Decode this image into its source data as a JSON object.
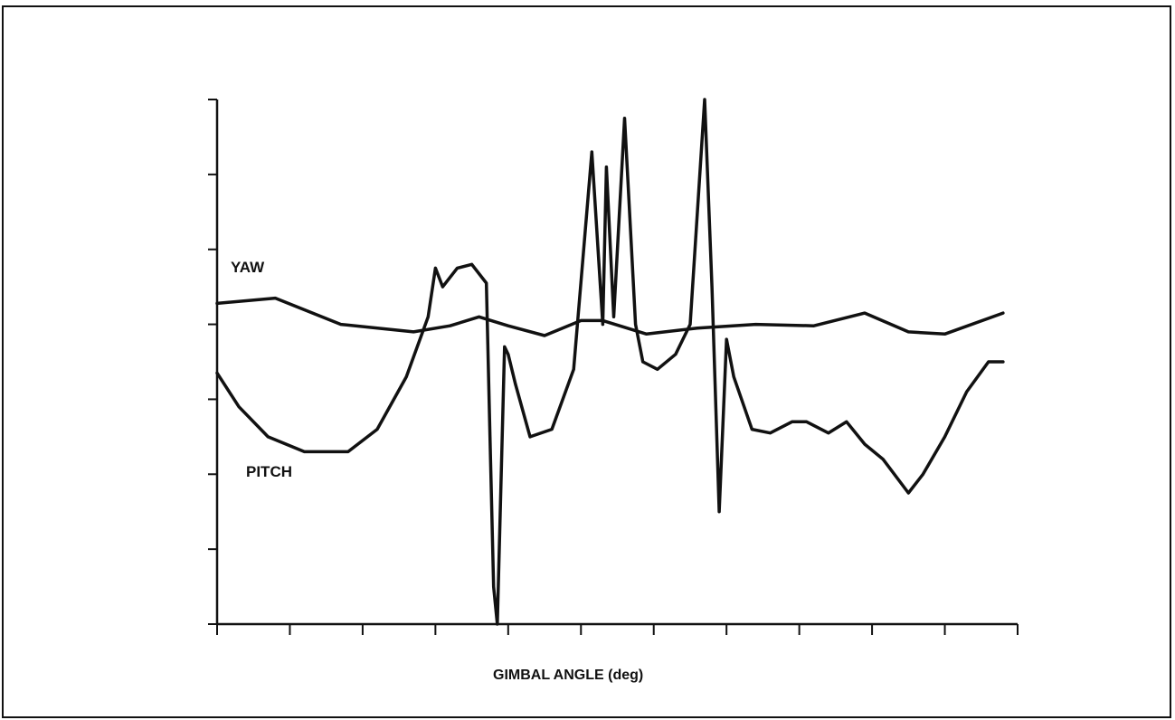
{
  "chart_data": {
    "type": "line",
    "xlabel": "GIMBAL ANGLE (deg)",
    "ylabel": "",
    "xlim": [
      0,
      11
    ],
    "ylim": [
      0,
      7
    ],
    "x_ticks": [
      0,
      1,
      2,
      3,
      4,
      5,
      6,
      7,
      8,
      9,
      10,
      11
    ],
    "y_ticks": [
      0,
      1,
      2,
      3,
      4,
      5,
      6,
      7
    ],
    "grid": false,
    "series": [
      {
        "name": "YAW",
        "x": [
          0,
          0.8,
          1.7,
          2.7,
          3.2,
          3.6,
          4.0,
          4.5,
          5.0,
          5.3,
          5.9,
          6.6,
          7.4,
          8.2,
          8.9,
          9.5,
          10.0,
          10.8
        ],
        "y": [
          4.28,
          4.35,
          4.0,
          3.9,
          3.98,
          4.1,
          3.98,
          3.85,
          4.05,
          4.05,
          3.87,
          3.95,
          4.0,
          3.98,
          4.15,
          3.9,
          3.87,
          4.15
        ]
      },
      {
        "name": "PITCH",
        "x": [
          0,
          0.3,
          0.7,
          1.2,
          1.8,
          2.2,
          2.6,
          2.9,
          3.0,
          3.1,
          3.3,
          3.5,
          3.7,
          3.75,
          3.8,
          3.85,
          3.95,
          4.0,
          4.1,
          4.3,
          4.6,
          4.9,
          5.15,
          5.3,
          5.35,
          5.45,
          5.6,
          5.75,
          5.85,
          6.05,
          6.3,
          6.5,
          6.7,
          6.8,
          6.9,
          7.0,
          7.1,
          7.35,
          7.6,
          7.9,
          8.1,
          8.4,
          8.65,
          8.9,
          9.15,
          9.5,
          9.7,
          10.0,
          10.3,
          10.6,
          10.8
        ],
        "y": [
          3.35,
          2.9,
          2.5,
          2.3,
          2.3,
          2.6,
          3.3,
          4.1,
          4.75,
          4.5,
          4.75,
          4.8,
          4.55,
          2.5,
          0.5,
          0.0,
          3.7,
          3.6,
          3.2,
          2.5,
          2.6,
          3.4,
          6.3,
          4.0,
          6.1,
          4.1,
          6.75,
          4.0,
          3.5,
          3.4,
          3.6,
          4.0,
          7.0,
          4.5,
          1.5,
          3.8,
          3.3,
          2.6,
          2.55,
          2.7,
          2.7,
          2.55,
          2.7,
          2.4,
          2.2,
          1.75,
          2.0,
          2.5,
          3.1,
          3.5,
          3.5
        ]
      }
    ]
  }
}
